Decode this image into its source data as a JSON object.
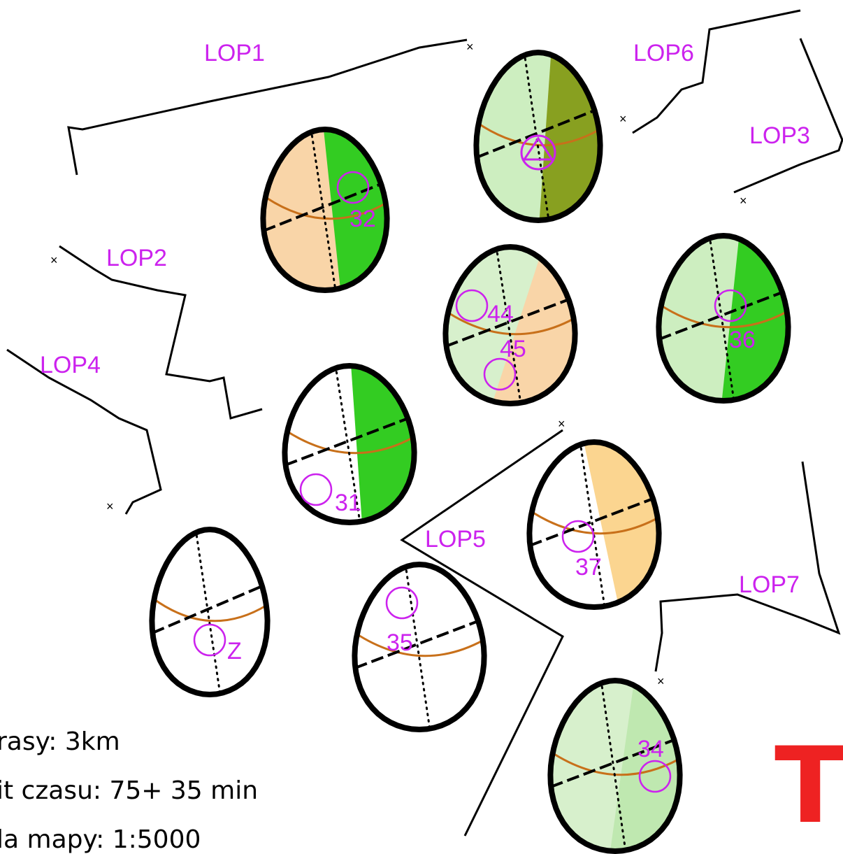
{
  "lop_labels": [
    "LOP1",
    "LOP6",
    "LOP3",
    "LOP2",
    "LOP4",
    "LOP5",
    "LOP7"
  ],
  "controls": [
    "32",
    "44",
    "45",
    "36",
    "31",
    "37",
    "Z",
    "35",
    "34"
  ],
  "info": [
    "rasy: 3km",
    "it czasu: 75+ 35 min",
    "la mapy: 1:5000"
  ],
  "corner_letter": "T"
}
